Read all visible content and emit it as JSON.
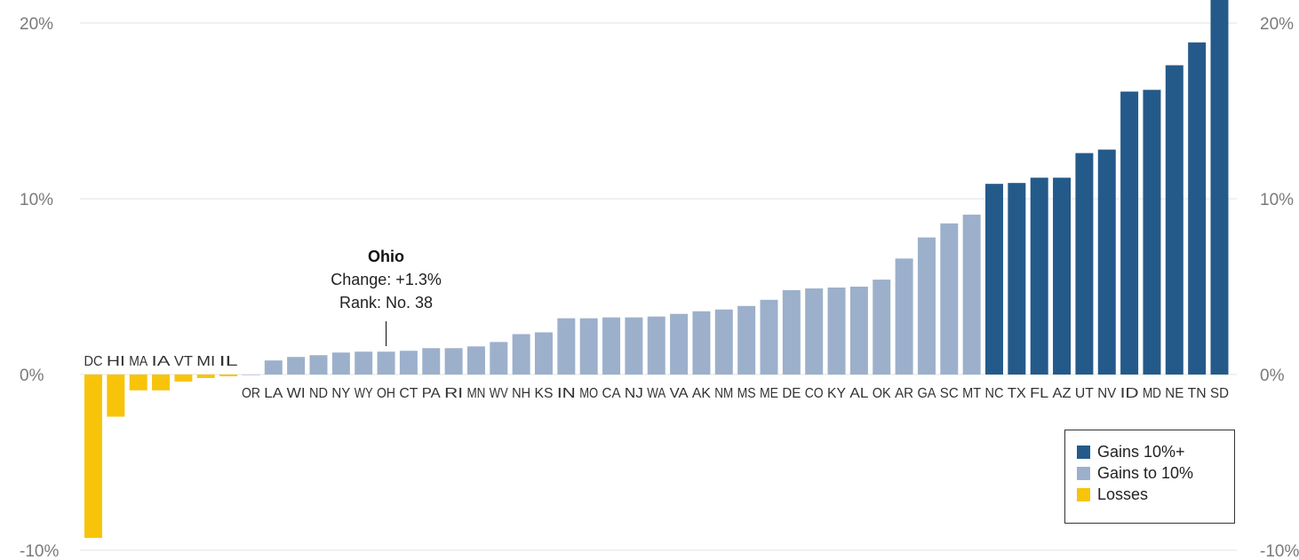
{
  "chart_data": {
    "type": "bar",
    "categories": [
      "DC",
      "HI",
      "MA",
      "IA",
      "VT",
      "MI",
      "IL",
      "OR",
      "LA",
      "WI",
      "ND",
      "NY",
      "WY",
      "OH",
      "CT",
      "PA",
      "RI",
      "MN",
      "WV",
      "NH",
      "KS",
      "IN",
      "MO",
      "CA",
      "NJ",
      "WA",
      "VA",
      "AK",
      "NM",
      "MS",
      "ME",
      "DE",
      "CO",
      "KY",
      "AL",
      "OK",
      "AR",
      "GA",
      "SC",
      "MT",
      "NC",
      "TX",
      "FL",
      "AZ",
      "UT",
      "NV",
      "ID",
      "MD",
      "NE",
      "TN",
      "SD"
    ],
    "values": [
      -9.3,
      -2.4,
      -0.9,
      -0.9,
      -0.4,
      -0.2,
      -0.1,
      0.0,
      0.8,
      1.0,
      1.1,
      1.25,
      1.3,
      1.3,
      1.35,
      1.5,
      1.5,
      1.6,
      1.85,
      2.3,
      2.4,
      3.2,
      3.2,
      3.25,
      3.25,
      3.3,
      3.45,
      3.6,
      3.7,
      3.9,
      4.25,
      4.8,
      4.9,
      4.95,
      5.0,
      5.4,
      6.6,
      7.8,
      8.6,
      9.1,
      10.85,
      10.9,
      11.2,
      11.2,
      12.6,
      12.8,
      16.1,
      16.2,
      17.6,
      18.9,
      21.5
    ],
    "groups": [
      "loss",
      "loss",
      "loss",
      "loss",
      "loss",
      "loss",
      "loss",
      "gain",
      "gain",
      "gain",
      "gain",
      "gain",
      "gain",
      "gain",
      "gain",
      "gain",
      "gain",
      "gain",
      "gain",
      "gain",
      "gain",
      "gain",
      "gain",
      "gain",
      "gain",
      "gain",
      "gain",
      "gain",
      "gain",
      "gain",
      "gain",
      "gain",
      "gain",
      "gain",
      "gain",
      "gain",
      "gain",
      "gain",
      "gain",
      "gain",
      "big",
      "big",
      "big",
      "big",
      "big",
      "big",
      "big",
      "big",
      "big",
      "big",
      "big"
    ],
    "ylim": [
      -10,
      21
    ],
    "yticks": [
      -10,
      0,
      10,
      20
    ],
    "ytick_labels": [
      "-10%",
      "0%",
      "10%",
      "20%"
    ],
    "grid": true,
    "legend_position": "bottom-right",
    "colors": {
      "big": "#245a8a",
      "gain": "#9cb0cb",
      "loss": "#f8c40a"
    },
    "legend": [
      {
        "label": "Gains 10%+",
        "group": "big"
      },
      {
        "label": "Gains to 10%",
        "group": "gain"
      },
      {
        "label": "Losses",
        "group": "loss"
      }
    ],
    "annotation": {
      "category": "OH",
      "title": "Ohio",
      "line1": "Change: +1.3%",
      "line2": "Rank: No. 38"
    }
  }
}
